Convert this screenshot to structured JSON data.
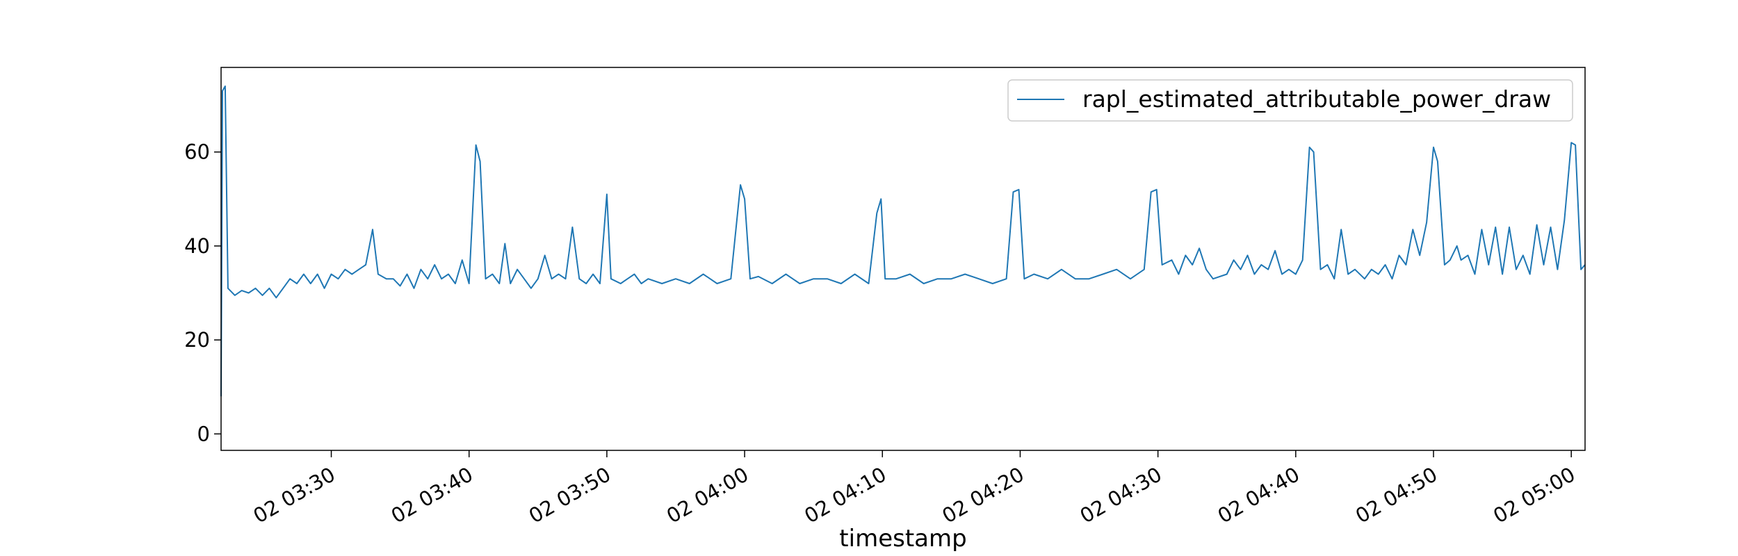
{
  "chart_data": {
    "type": "line",
    "title": "",
    "xlabel": "timestamp",
    "ylabel": "",
    "x_unit": "minutes",
    "xlim": [
      "03:22",
      "05:01"
    ],
    "ylim": [
      -3.5,
      78
    ],
    "grid": false,
    "legend_position": "top-right",
    "x_ticks": [
      {
        "at": "03:30",
        "label": "02 03:30"
      },
      {
        "at": "03:40",
        "label": "02 03:40"
      },
      {
        "at": "03:50",
        "label": "02 03:50"
      },
      {
        "at": "04:00",
        "label": "02 04:00"
      },
      {
        "at": "04:10",
        "label": "02 04:10"
      },
      {
        "at": "04:20",
        "label": "02 04:20"
      },
      {
        "at": "04:30",
        "label": "02 04:30"
      },
      {
        "at": "04:40",
        "label": "02 04:40"
      },
      {
        "at": "04:50",
        "label": "02 04:50"
      },
      {
        "at": "05:00",
        "label": "02 05:00"
      }
    ],
    "y_ticks": [
      {
        "value": 0,
        "label": "0"
      },
      {
        "value": 20,
        "label": "20"
      },
      {
        "value": 40,
        "label": "40"
      },
      {
        "value": 60,
        "label": "60"
      }
    ],
    "series": [
      {
        "name": "rapl_estimated_attributable_power_draw",
        "color": "#1f77b4",
        "points": [
          [
            "03:22",
            8
          ],
          [
            "03:22.1",
            73
          ],
          [
            "03:22.3",
            74
          ],
          [
            "03:22.5",
            31
          ],
          [
            "03:23",
            29.5
          ],
          [
            "03:23.5",
            30.5
          ],
          [
            "03:24",
            30
          ],
          [
            "03:24.5",
            31
          ],
          [
            "03:25",
            29.5
          ],
          [
            "03:25.5",
            31
          ],
          [
            "03:26",
            29
          ],
          [
            "03:26.5",
            31
          ],
          [
            "03:27",
            33
          ],
          [
            "03:27.5",
            32
          ],
          [
            "03:28",
            34
          ],
          [
            "03:28.5",
            32
          ],
          [
            "03:29",
            34
          ],
          [
            "03:29.5",
            31
          ],
          [
            "03:30",
            34
          ],
          [
            "03:30.5",
            33
          ],
          [
            "03:31",
            35
          ],
          [
            "03:31.5",
            34
          ],
          [
            "03:32",
            35
          ],
          [
            "03:32.5",
            36
          ],
          [
            "03:33",
            43.5
          ],
          [
            "03:33.4",
            34
          ],
          [
            "03:34",
            33
          ],
          [
            "03:34.5",
            33
          ],
          [
            "03:35",
            31.5
          ],
          [
            "03:35.5",
            34
          ],
          [
            "03:36",
            31
          ],
          [
            "03:36.5",
            35
          ],
          [
            "03:37",
            33
          ],
          [
            "03:37.5",
            36
          ],
          [
            "03:38",
            33
          ],
          [
            "03:38.5",
            34
          ],
          [
            "03:39",
            32
          ],
          [
            "03:39.5",
            37
          ],
          [
            "03:40",
            32
          ],
          [
            "03:40.5",
            61.5
          ],
          [
            "03:40.8",
            58
          ],
          [
            "03:41.2",
            33
          ],
          [
            "03:41.7",
            34
          ],
          [
            "03:42.2",
            32
          ],
          [
            "03:42.6",
            40.5
          ],
          [
            "03:43",
            32
          ],
          [
            "03:43.5",
            35
          ],
          [
            "03:44",
            33
          ],
          [
            "03:44.5",
            31
          ],
          [
            "03:45",
            33
          ],
          [
            "03:45.5",
            38
          ],
          [
            "03:46",
            33
          ],
          [
            "03:46.5",
            34
          ],
          [
            "03:47",
            33
          ],
          [
            "03:47.5",
            44
          ],
          [
            "03:48",
            33
          ],
          [
            "03:48.5",
            32
          ],
          [
            "03:49",
            34
          ],
          [
            "03:49.5",
            32
          ],
          [
            "03:50",
            51
          ],
          [
            "03:50.3",
            33
          ],
          [
            "03:51",
            32
          ],
          [
            "03:51.5",
            33
          ],
          [
            "03:52",
            34
          ],
          [
            "03:52.5",
            32
          ],
          [
            "03:53",
            33
          ],
          [
            "03:54",
            32
          ],
          [
            "03:55",
            33
          ],
          [
            "03:56",
            32
          ],
          [
            "03:57",
            34
          ],
          [
            "03:57.5",
            33
          ],
          [
            "03:58",
            32
          ],
          [
            "03:59",
            33
          ],
          [
            "03:59.7",
            53
          ],
          [
            "04:00",
            50
          ],
          [
            "04:00.4",
            33
          ],
          [
            "04:01",
            33.5
          ],
          [
            "04:02",
            32
          ],
          [
            "04:03",
            34
          ],
          [
            "04:04",
            32
          ],
          [
            "04:05",
            33
          ],
          [
            "04:06",
            33
          ],
          [
            "04:07",
            32
          ],
          [
            "04:08",
            34
          ],
          [
            "04:09",
            32
          ],
          [
            "04:09.6",
            47
          ],
          [
            "04:09.9",
            50
          ],
          [
            "04:10.2",
            33
          ],
          [
            "04:11",
            33
          ],
          [
            "04:12",
            34
          ],
          [
            "04:13",
            32
          ],
          [
            "04:14",
            33
          ],
          [
            "04:15",
            33
          ],
          [
            "04:16",
            34
          ],
          [
            "04:17",
            33
          ],
          [
            "04:18",
            32
          ],
          [
            "04:19",
            33
          ],
          [
            "04:19.5",
            51.5
          ],
          [
            "04:19.9",
            52
          ],
          [
            "04:20.3",
            33
          ],
          [
            "04:21",
            34
          ],
          [
            "04:22",
            33
          ],
          [
            "04:23",
            35
          ],
          [
            "04:24",
            33
          ],
          [
            "04:25",
            33
          ],
          [
            "04:26",
            34
          ],
          [
            "04:27",
            35
          ],
          [
            "04:28",
            33
          ],
          [
            "04:29",
            35
          ],
          [
            "04:29.5",
            51.5
          ],
          [
            "04:29.9",
            52
          ],
          [
            "04:30.3",
            36
          ],
          [
            "04:31",
            37
          ],
          [
            "04:31.5",
            34
          ],
          [
            "04:32",
            38
          ],
          [
            "04:32.5",
            36
          ],
          [
            "04:33",
            39.5
          ],
          [
            "04:33.5",
            35
          ],
          [
            "04:34",
            33
          ],
          [
            "04:35",
            34
          ],
          [
            "04:35.5",
            37
          ],
          [
            "04:36",
            35
          ],
          [
            "04:36.5",
            38
          ],
          [
            "04:37",
            34
          ],
          [
            "04:37.5",
            36
          ],
          [
            "04:38",
            35
          ],
          [
            "04:38.5",
            39
          ],
          [
            "04:39",
            34
          ],
          [
            "04:39.5",
            35
          ],
          [
            "04:40",
            34
          ],
          [
            "04:40.5",
            37
          ],
          [
            "04:41",
            61
          ],
          [
            "04:41.3",
            60
          ],
          [
            "04:41.8",
            35
          ],
          [
            "04:42.3",
            36
          ],
          [
            "04:42.8",
            33
          ],
          [
            "04:43.3",
            43.5
          ],
          [
            "04:43.8",
            34
          ],
          [
            "04:44.3",
            35
          ],
          [
            "04:45",
            33
          ],
          [
            "04:45.5",
            35
          ],
          [
            "04:46",
            34
          ],
          [
            "04:46.5",
            36
          ],
          [
            "04:47",
            33
          ],
          [
            "04:47.5",
            38
          ],
          [
            "04:48",
            36
          ],
          [
            "04:48.5",
            43.5
          ],
          [
            "04:49",
            38
          ],
          [
            "04:49.5",
            45
          ],
          [
            "04:50",
            61
          ],
          [
            "04:50.3",
            58
          ],
          [
            "04:50.8",
            36
          ],
          [
            "04:51.2",
            37
          ],
          [
            "04:51.7",
            40
          ],
          [
            "04:52",
            37
          ],
          [
            "04:52.5",
            38
          ],
          [
            "04:53",
            34
          ],
          [
            "04:53.5",
            43.5
          ],
          [
            "04:54",
            36
          ],
          [
            "04:54.5",
            44
          ],
          [
            "04:55",
            34
          ],
          [
            "04:55.5",
            44
          ],
          [
            "04:56",
            35
          ],
          [
            "04:56.5",
            38
          ],
          [
            "04:57",
            34
          ],
          [
            "04:57.5",
            44.5
          ],
          [
            "04:58",
            36
          ],
          [
            "04:58.5",
            44
          ],
          [
            "04:59",
            35
          ],
          [
            "04:59.5",
            45.5
          ],
          [
            "05:00",
            62
          ],
          [
            "05:00.3",
            61.5
          ],
          [
            "05:00.7",
            35
          ],
          [
            "05:01",
            36
          ]
        ]
      }
    ]
  }
}
